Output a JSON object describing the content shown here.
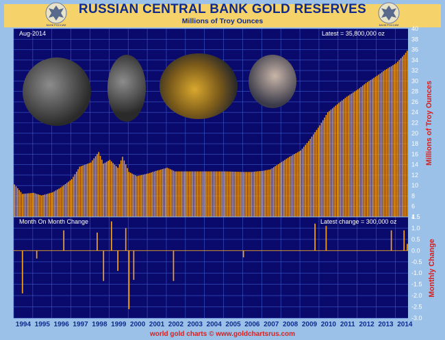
{
  "header": {
    "title": "RUSSIAN CENTRAL BANK GOLD RESERVES",
    "subtitle": "Millions of Troy Ounces",
    "logo_left_text": "БАНК РОССИИ",
    "logo_right_text": "БАНК РОССИИ"
  },
  "top_panel": {
    "date_label": "Aug-2014",
    "latest_label": "Latest = 35,800,000 oz",
    "ylabel": "Millions of Troy Ounces"
  },
  "bottom_panel": {
    "title_label": "Month On Month Change",
    "latest_label": "Latest change = 300,000 oz",
    "ylabel": "Monthly Change"
  },
  "footer": "world gold charts © www.goldchartsrus.com",
  "colors": {
    "bar": "#f3a11c",
    "background": "#0a0a6c",
    "grid": "#3a5acc",
    "frame": "#9cc1e8",
    "header": "#f5d26a",
    "title": "#0e2a8e",
    "footer": "#d62020"
  },
  "photos": [
    {
      "name": "photo-1",
      "description": "officials inspecting gold bars"
    },
    {
      "name": "photo-2",
      "description": "Putin with gold bar"
    },
    {
      "name": "photo-3",
      "description": "officials with gold bar"
    },
    {
      "name": "photo-4",
      "description": "Medvedev portrait"
    }
  ],
  "chart_data": [
    {
      "type": "bar",
      "title": "RUSSIAN CENTRAL BANK GOLD RESERVES",
      "subtitle": "Millions of Troy Ounces",
      "xlabel": "",
      "ylabel": "Millions of Troy Ounces",
      "ylim": [
        4,
        40
      ],
      "yticks": [
        4,
        6,
        8,
        10,
        12,
        14,
        16,
        18,
        20,
        22,
        24,
        26,
        28,
        30,
        32,
        34,
        36,
        38,
        40
      ],
      "grid": true,
      "x_categories": [
        "1994",
        "1995",
        "1996",
        "1997",
        "1998",
        "1999",
        "2000",
        "2001",
        "2002",
        "2003",
        "2004",
        "2005",
        "2006",
        "2007",
        "2008",
        "2009",
        "2010",
        "2011",
        "2012",
        "2013",
        "2014"
      ],
      "x_start": "1994-01",
      "x_end": "2014-08",
      "frequency": "monthly",
      "annual_points": [
        {
          "date": "1994-01",
          "value": 10.2
        },
        {
          "date": "1994-06",
          "value": 8.4
        },
        {
          "date": "1995-01",
          "value": 8.6
        },
        {
          "date": "1995-06",
          "value": 8.1
        },
        {
          "date": "1996-01",
          "value": 8.7
        },
        {
          "date": "1996-06",
          "value": 9.6
        },
        {
          "date": "1997-01",
          "value": 11.2
        },
        {
          "date": "1997-06",
          "value": 13.6
        },
        {
          "date": "1998-01",
          "value": 14.4
        },
        {
          "date": "1998-06",
          "value": 16.4
        },
        {
          "date": "1998-09",
          "value": 14.2
        },
        {
          "date": "1999-01",
          "value": 14.9
        },
        {
          "date": "1999-06",
          "value": 13.4
        },
        {
          "date": "1999-09",
          "value": 15.5
        },
        {
          "date": "2000-01",
          "value": 12.6
        },
        {
          "date": "2000-06",
          "value": 11.8
        },
        {
          "date": "2001-01",
          "value": 12.3
        },
        {
          "date": "2001-06",
          "value": 12.8
        },
        {
          "date": "2002-01",
          "value": 13.4
        },
        {
          "date": "2002-06",
          "value": 12.7
        },
        {
          "date": "2003-01",
          "value": 12.7
        },
        {
          "date": "2004-01",
          "value": 12.7
        },
        {
          "date": "2005-01",
          "value": 12.7
        },
        {
          "date": "2006-01",
          "value": 12.6
        },
        {
          "date": "2006-06",
          "value": 12.6
        },
        {
          "date": "2007-01",
          "value": 12.8
        },
        {
          "date": "2007-06",
          "value": 13.1
        },
        {
          "date": "2008-01",
          "value": 14.5
        },
        {
          "date": "2008-06",
          "value": 15.5
        },
        {
          "date": "2009-01",
          "value": 16.7
        },
        {
          "date": "2009-06",
          "value": 18.5
        },
        {
          "date": "2010-01",
          "value": 21.5
        },
        {
          "date": "2010-06",
          "value": 24.0
        },
        {
          "date": "2011-01",
          "value": 25.8
        },
        {
          "date": "2011-06",
          "value": 27.0
        },
        {
          "date": "2012-01",
          "value": 28.4
        },
        {
          "date": "2012-06",
          "value": 29.6
        },
        {
          "date": "2013-01",
          "value": 31.0
        },
        {
          "date": "2013-06",
          "value": 32.1
        },
        {
          "date": "2014-01",
          "value": 33.4
        },
        {
          "date": "2014-06",
          "value": 35.0
        },
        {
          "date": "2014-08",
          "value": 35.8
        }
      ]
    },
    {
      "type": "bar",
      "title": "Month On Month Change",
      "ylabel": "Monthly Change",
      "ylim": [
        -3.0,
        1.5
      ],
      "yticks": [
        1.5,
        1.0,
        0.5,
        0.0,
        -0.5,
        -1.0,
        -1.5,
        -2.0,
        -2.5,
        -3.0
      ],
      "grid": true,
      "notable_changes": [
        {
          "date": "1994-06",
          "value": -1.9
        },
        {
          "date": "1995-03",
          "value": -0.35
        },
        {
          "date": "1996-08",
          "value": 0.9
        },
        {
          "date": "1998-05",
          "value": 0.8
        },
        {
          "date": "1998-09",
          "value": -1.35
        },
        {
          "date": "1999-02",
          "value": 1.3
        },
        {
          "date": "1999-06",
          "value": -0.9
        },
        {
          "date": "1999-11",
          "value": 1.0
        },
        {
          "date": "2000-01",
          "value": -2.6
        },
        {
          "date": "2000-04",
          "value": -1.3
        },
        {
          "date": "2002-05",
          "value": -1.35
        },
        {
          "date": "2006-01",
          "value": -0.3
        },
        {
          "date": "2009-10",
          "value": 1.2
        },
        {
          "date": "2010-05",
          "value": 1.1
        },
        {
          "date": "2013-10",
          "value": 0.9
        },
        {
          "date": "2014-06",
          "value": 0.9
        },
        {
          "date": "2014-08",
          "value": 0.3
        }
      ]
    }
  ]
}
